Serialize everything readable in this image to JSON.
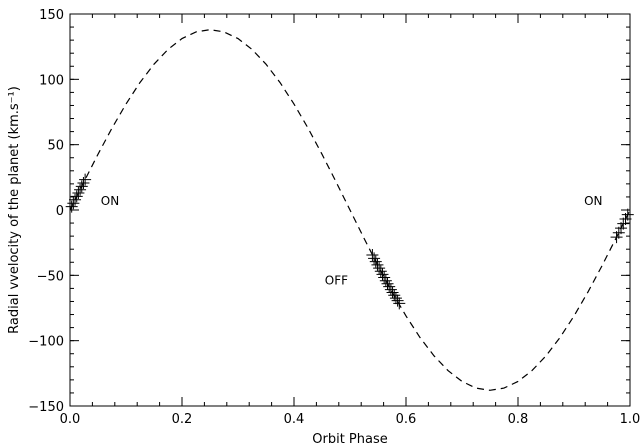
{
  "chart_data": {
    "type": "scatter",
    "title": "",
    "xlabel": "Orbit Phase",
    "ylabel": "Radial vvelocity of the planet (km.s⁻¹)",
    "xlim": [
      0.0,
      1.0
    ],
    "ylim": [
      -150,
      150
    ],
    "x_ticks": [
      0.0,
      0.2,
      0.4,
      0.6,
      0.8,
      1.0
    ],
    "x_tick_labels": [
      "0.0",
      "0.2",
      "0.4",
      "0.6",
      "0.8",
      "1.0"
    ],
    "y_ticks": [
      -150,
      -100,
      -50,
      0,
      50,
      100,
      150
    ],
    "y_tick_labels": [
      "−150",
      "−100",
      "−50",
      "0",
      "50",
      "100",
      "150"
    ],
    "grid": false,
    "series": [
      {
        "style": "dashed-line",
        "x": [
          0.0,
          0.025,
          0.05,
          0.075,
          0.1,
          0.125,
          0.15,
          0.175,
          0.2,
          0.225,
          0.25,
          0.275,
          0.3,
          0.325,
          0.35,
          0.375,
          0.4,
          0.425,
          0.45,
          0.475,
          0.5,
          0.525,
          0.55,
          0.575,
          0.6,
          0.625,
          0.65,
          0.675,
          0.7,
          0.725,
          0.75,
          0.775,
          0.8,
          0.825,
          0.85,
          0.875,
          0.9,
          0.925,
          0.95,
          0.975,
          1.0
        ],
        "y": [
          0,
          21.6,
          42.7,
          62.7,
          81.1,
          97.6,
          111.6,
          122.9,
          131.2,
          136.3,
          138,
          136.3,
          131.2,
          122.9,
          111.6,
          97.6,
          81.1,
          62.7,
          42.7,
          21.6,
          0,
          -21.6,
          -42.7,
          -62.7,
          -81.1,
          -97.6,
          -111.6,
          -122.9,
          -131.2,
          -136.3,
          -138,
          -136.3,
          -131.2,
          -122.9,
          -111.6,
          -97.6,
          -81.1,
          -62.7,
          -42.7,
          -21.6,
          0
        ]
      },
      {
        "style": "plus-markers",
        "x": [
          0.003,
          0.006,
          0.009,
          0.012,
          0.015,
          0.018,
          0.021,
          0.024,
          0.027,
          0.54,
          0.543,
          0.546,
          0.549,
          0.552,
          0.555,
          0.558,
          0.561,
          0.564,
          0.567,
          0.57,
          0.573,
          0.576,
          0.579,
          0.582,
          0.585,
          0.588,
          0.976,
          0.98,
          0.984,
          0.988,
          0.992,
          0.996
        ],
        "y": [
          2.6,
          5.2,
          7.8,
          10.4,
          13.0,
          15.5,
          18.1,
          20.7,
          23.2,
          -34.4,
          -37.0,
          -39.5,
          -42.0,
          -44.5,
          -46.9,
          -49.3,
          -51.7,
          -54.1,
          -56.4,
          -58.6,
          -60.9,
          -63.1,
          -65.2,
          -67.4,
          -69.4,
          -71.5,
          -20.8,
          -17.4,
          -13.9,
          -10.4,
          -6.9,
          -3.5
        ]
      }
    ],
    "annotations": [
      {
        "text": "ON",
        "x": 0.055,
        "y": 4
      },
      {
        "text": "OFF",
        "x": 0.455,
        "y": -57
      },
      {
        "text": "ON",
        "x": 0.918,
        "y": 4
      }
    ]
  }
}
